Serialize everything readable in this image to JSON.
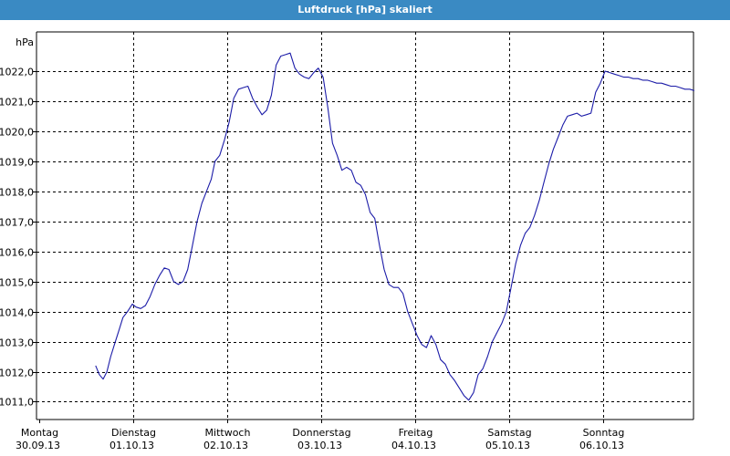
{
  "window": {
    "title": "Luftdruck [hPa] skaliert"
  },
  "chart_data": {
    "type": "line",
    "title": "Luftdruck [hPa] skaliert",
    "ylabel": "hPa",
    "ylim": [
      1010.6,
      1023.0
    ],
    "xlim": [
      0,
      7.0
    ],
    "grid": true,
    "colors": {
      "line": "#1c1ca8",
      "background": "#ffffff",
      "title_bar": "#3a8ac3"
    },
    "y_ticks": [
      {
        "value": 1022.0,
        "label": "1022,0"
      },
      {
        "value": 1021.0,
        "label": "1021,0"
      },
      {
        "value": 1020.0,
        "label": "1020,0"
      },
      {
        "value": 1019.0,
        "label": "1019,0"
      },
      {
        "value": 1018.0,
        "label": "1018,0"
      },
      {
        "value": 1017.0,
        "label": "1017,0"
      },
      {
        "value": 1016.0,
        "label": "1016,0"
      },
      {
        "value": 1015.0,
        "label": "1015,0"
      },
      {
        "value": 1014.0,
        "label": "1014,0"
      },
      {
        "value": 1013.0,
        "label": "1013,0"
      },
      {
        "value": 1012.0,
        "label": "1012,0"
      },
      {
        "value": 1011.0,
        "label": "1011,0"
      }
    ],
    "x_ticks": [
      {
        "value": 0,
        "day": "Montag",
        "date": "30.09.13"
      },
      {
        "value": 1,
        "day": "Dienstag",
        "date": "01.10.13"
      },
      {
        "value": 2,
        "day": "Mittwoch",
        "date": "02.10.13"
      },
      {
        "value": 3,
        "day": "Donnerstag",
        "date": "03.10.13"
      },
      {
        "value": 4,
        "day": "Freitag",
        "date": "04.10.13"
      },
      {
        "value": 5,
        "day": "Samstag",
        "date": "05.10.13"
      },
      {
        "value": 6,
        "day": "Sonntag",
        "date": "06.10.13"
      }
    ],
    "series": [
      {
        "x": [
          0.6,
          0.64,
          0.68,
          0.72,
          0.76,
          0.8,
          0.85,
          0.89,
          0.94,
          0.99,
          1.03,
          1.08,
          1.13,
          1.18,
          1.23,
          1.28,
          1.33,
          1.38,
          1.43,
          1.48,
          1.53,
          1.58,
          1.63,
          1.68,
          1.73,
          1.78,
          1.83,
          1.87,
          1.92,
          1.97,
          2.02,
          2.07,
          2.12,
          2.17,
          2.22,
          2.27,
          2.32,
          2.37,
          2.42,
          2.47,
          2.52,
          2.57,
          2.62,
          2.67,
          2.72,
          2.77,
          2.82,
          2.87,
          2.92,
          2.97,
          3.02,
          3.07,
          3.12,
          3.17,
          3.22,
          3.27,
          3.32,
          3.37,
          3.42,
          3.47,
          3.52,
          3.57,
          3.62,
          3.67,
          3.72,
          3.77,
          3.82,
          3.87,
          3.92,
          3.97,
          4.02,
          4.07,
          4.12,
          4.17,
          4.22,
          4.27,
          4.32,
          4.37,
          4.42,
          4.47,
          4.52,
          4.57,
          4.62,
          4.67,
          4.72,
          4.77,
          4.82,
          4.87,
          4.92,
          4.97,
          5.02,
          5.07,
          5.12,
          5.17,
          5.22,
          5.27,
          5.32,
          5.37,
          5.42,
          5.47,
          5.52,
          5.57,
          5.62,
          5.67,
          5.72,
          5.77,
          5.82,
          5.87,
          5.92,
          5.97,
          6.02,
          6.07,
          6.12,
          6.17,
          6.22,
          6.27,
          6.32,
          6.37,
          6.42,
          6.47,
          6.52,
          6.57,
          6.62,
          6.67,
          6.72,
          6.77,
          6.82,
          6.87,
          6.92,
          6.97
        ],
        "values": [
          1012.2,
          1011.9,
          1011.75,
          1012.0,
          1012.5,
          1012.9,
          1013.4,
          1013.8,
          1014.0,
          1014.25,
          1014.15,
          1014.1,
          1014.2,
          1014.5,
          1014.9,
          1015.2,
          1015.45,
          1015.4,
          1015.0,
          1014.9,
          1015.0,
          1015.4,
          1016.2,
          1017.0,
          1017.6,
          1018.0,
          1018.4,
          1019.0,
          1019.2,
          1019.7,
          1020.3,
          1021.1,
          1021.4,
          1021.45,
          1021.5,
          1021.1,
          1020.8,
          1020.55,
          1020.7,
          1021.2,
          1022.2,
          1022.5,
          1022.55,
          1022.6,
          1022.1,
          1021.9,
          1021.8,
          1021.75,
          1021.95,
          1022.1,
          1021.8,
          1020.8,
          1019.6,
          1019.2,
          1018.7,
          1018.8,
          1018.7,
          1018.3,
          1018.2,
          1017.9,
          1017.3,
          1017.1,
          1016.2,
          1015.4,
          1014.9,
          1014.8,
          1014.8,
          1014.6,
          1014.0,
          1013.6,
          1013.2,
          1012.9,
          1012.8,
          1013.2,
          1012.9,
          1012.4,
          1012.25,
          1011.9,
          1011.7,
          1011.45,
          1011.2,
          1011.05,
          1011.3,
          1011.9,
          1012.1,
          1012.5,
          1013.0,
          1013.3,
          1013.6,
          1014.0,
          1014.8,
          1015.6,
          1016.2,
          1016.6,
          1016.8,
          1017.2,
          1017.7,
          1018.3,
          1018.9,
          1019.4,
          1019.8,
          1020.2,
          1020.5,
          1020.55,
          1020.6,
          1020.5,
          1020.55,
          1020.6,
          1021.3,
          1021.6,
          1022.0,
          1021.95,
          1021.9,
          1021.85,
          1021.8,
          1021.8,
          1021.75,
          1021.75,
          1021.7,
          1021.7,
          1021.65,
          1021.6,
          1021.6,
          1021.55,
          1021.5,
          1021.5,
          1021.45,
          1021.4,
          1021.4,
          1021.35
        ]
      }
    ]
  }
}
